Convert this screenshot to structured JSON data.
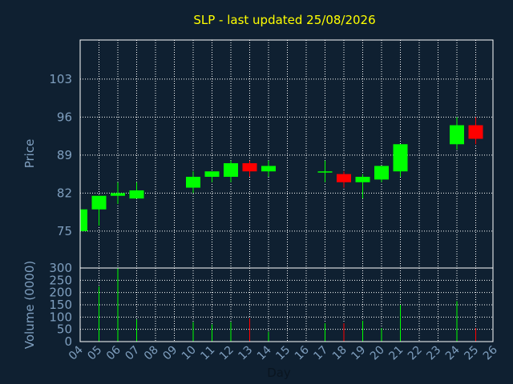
{
  "colors": {
    "background": "#0f2031",
    "title": "#ffff00",
    "axis_text": "#7f9fbf",
    "frame": "#ffffff",
    "grid": "#ffffff",
    "up": "#00ff00",
    "down": "#ff0000"
  },
  "chart_data": [
    {
      "type": "candlestick",
      "title": "SLP - last updated 25/08/2026",
      "ylabel": "Price",
      "ylim": [
        68.2,
        110.2
      ],
      "yticks": [
        "75",
        "82",
        "89",
        "96",
        "103"
      ],
      "grid": true,
      "x": [
        "04",
        "05",
        "06",
        "07",
        "08",
        "09",
        "10",
        "11",
        "12",
        "13",
        "14",
        "15",
        "16",
        "17",
        "18",
        "19",
        "20",
        "21",
        "22",
        "23",
        "24",
        "25",
        "26"
      ],
      "candles": [
        {
          "day": "04",
          "open": 75.0,
          "high": 79.0,
          "low": 75.0,
          "close": 79.0
        },
        {
          "day": "05",
          "open": 79.0,
          "high": 81.5,
          "low": 76.0,
          "close": 81.5
        },
        {
          "day": "06",
          "open": 81.5,
          "high": 84.0,
          "low": 80.0,
          "close": 82.0
        },
        {
          "day": "07",
          "open": 81.0,
          "high": 84.0,
          "low": 81.0,
          "close": 82.5
        },
        {
          "day": "10",
          "open": 83.0,
          "high": 86.0,
          "low": 82.0,
          "close": 85.0
        },
        {
          "day": "11",
          "open": 85.0,
          "high": 86.0,
          "low": 84.0,
          "close": 86.0
        },
        {
          "day": "12",
          "open": 85.0,
          "high": 88.0,
          "low": 84.0,
          "close": 87.5
        },
        {
          "day": "13",
          "open": 87.5,
          "high": 88.0,
          "low": 85.0,
          "close": 86.0
        },
        {
          "day": "14",
          "open": 86.0,
          "high": 88.0,
          "low": 85.0,
          "close": 87.0
        },
        {
          "day": "17",
          "open": 86.0,
          "high": 88.0,
          "low": 84.0,
          "close": 86.0
        },
        {
          "day": "18",
          "open": 85.5,
          "high": 86.0,
          "low": 83.0,
          "close": 84.0
        },
        {
          "day": "19",
          "open": 84.0,
          "high": 85.5,
          "low": 81.0,
          "close": 85.0
        },
        {
          "day": "20",
          "open": 84.5,
          "high": 87.0,
          "low": 84.0,
          "close": 87.0
        },
        {
          "day": "21",
          "open": 86.0,
          "high": 91.0,
          "low": 85.0,
          "close": 91.0
        },
        {
          "day": "24",
          "open": 91.0,
          "high": 96.0,
          "low": 90.0,
          "close": 94.5
        },
        {
          "day": "25",
          "open": 94.5,
          "high": 96.0,
          "low": 91.0,
          "close": 92.0
        }
      ]
    },
    {
      "type": "bar",
      "ylabel": "Volume (0000)",
      "xlabel": "Day",
      "ylim": [
        0,
        300
      ],
      "yticks": [
        "0",
        "50",
        "100",
        "150",
        "200",
        "250",
        "300"
      ],
      "grid": true,
      "x": [
        "04",
        "05",
        "06",
        "07",
        "08",
        "09",
        "10",
        "11",
        "12",
        "13",
        "14",
        "15",
        "16",
        "17",
        "18",
        "19",
        "20",
        "21",
        "22",
        "23",
        "24",
        "25",
        "26"
      ],
      "bars": [
        {
          "day": "05",
          "value": 225,
          "direction": "up"
        },
        {
          "day": "06",
          "value": 300,
          "direction": "up"
        },
        {
          "day": "07",
          "value": 90,
          "direction": "up"
        },
        {
          "day": "10",
          "value": 80,
          "direction": "up"
        },
        {
          "day": "11",
          "value": 70,
          "direction": "up"
        },
        {
          "day": "12",
          "value": 80,
          "direction": "up"
        },
        {
          "day": "13",
          "value": 95,
          "direction": "down"
        },
        {
          "day": "14",
          "value": 40,
          "direction": "up"
        },
        {
          "day": "17",
          "value": 75,
          "direction": "up"
        },
        {
          "day": "18",
          "value": 75,
          "direction": "down"
        },
        {
          "day": "19",
          "value": 85,
          "direction": "up"
        },
        {
          "day": "20",
          "value": 55,
          "direction": "up"
        },
        {
          "day": "21",
          "value": 150,
          "direction": "up"
        },
        {
          "day": "24",
          "value": 165,
          "direction": "up"
        },
        {
          "day": "25",
          "value": 55,
          "direction": "down"
        }
      ]
    }
  ]
}
